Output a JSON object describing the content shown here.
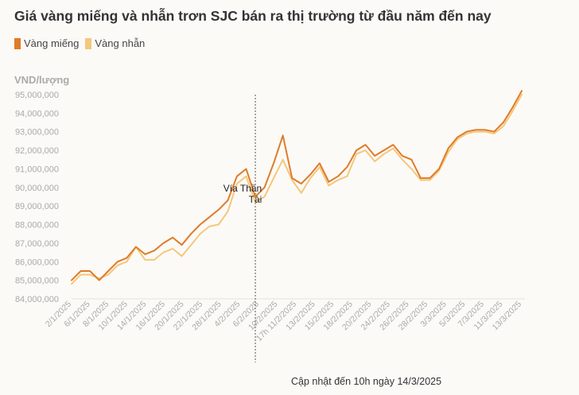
{
  "title": "Giá vàng miếng và nhẫn trơn SJC bán ra thị trường từ đầu năm đến nay",
  "footer": "Cập nhật đến 10h ngày 14/3/2025",
  "colors": {
    "vang_mieng": "#e07b28",
    "vang_nhan": "#f5c77a",
    "axis_text": "#aaaaaa",
    "annotation_line": "#555555"
  },
  "chart_data": {
    "type": "line",
    "ylabel": "VND/lượng",
    "ylim": [
      84000000,
      95000000
    ],
    "yticks": [
      "95,000,000",
      "94,000,000",
      "93,000,000",
      "92,000,000",
      "91,000,000",
      "90,000,000",
      "89,000,000",
      "88,000,000",
      "87,000,000",
      "86,000,000",
      "85,000,000",
      "84,000,000"
    ],
    "yticks_values": [
      95000000,
      94000000,
      93000000,
      92000000,
      91000000,
      90000000,
      89000000,
      88000000,
      87000000,
      86000000,
      85000000,
      84000000
    ],
    "xtick_labels": [
      "2/1/2025",
      "6/1/2025",
      "8/1/2025",
      "10/1/2025",
      "14/1/2025",
      "16/1/2025",
      "20/1/2025",
      "22/1/2025",
      "28/1/2025",
      "4/2/2025",
      "6/2/2025",
      "10/2/2025",
      "17h 11/2/2025",
      "13/2/2025",
      "15/2/2025",
      "18/2/2025",
      "20/2/2025",
      "24/2/2025",
      "26/2/2025",
      "28/2/2025",
      "3/3/2025",
      "5/3/2025",
      "7/3/2025",
      "11/3/2025",
      "13/3/2025"
    ],
    "grid": false,
    "legend": "top-left",
    "annotation": {
      "text": "Vía Thần Tài",
      "line_at_index": 20
    },
    "series": [
      {
        "name": "Vàng miếng",
        "values": [
          85000000,
          85500000,
          85500000,
          85000000,
          85500000,
          86000000,
          86200000,
          86800000,
          86400000,
          86600000,
          87000000,
          87300000,
          86900000,
          87500000,
          88000000,
          88400000,
          88800000,
          89300000,
          90600000,
          91000000,
          89500000,
          90000000,
          91300000,
          92800000,
          90500000,
          90200000,
          90700000,
          91300000,
          90300000,
          90600000,
          91100000,
          92000000,
          92300000,
          91700000,
          92000000,
          92300000,
          91700000,
          91500000,
          90500000,
          90500000,
          91000000,
          92100000,
          92700000,
          93000000,
          93100000,
          93100000,
          93000000,
          93500000,
          94300000,
          95200000
        ]
      },
      {
        "name": "Vàng nhẫn",
        "values": [
          84800000,
          85300000,
          85300000,
          85100000,
          85300000,
          85800000,
          86000000,
          86800000,
          86100000,
          86100000,
          86500000,
          86700000,
          86300000,
          86900000,
          87500000,
          87900000,
          88000000,
          88700000,
          90200000,
          90600000,
          89200000,
          89500000,
          90500000,
          91500000,
          90400000,
          89700000,
          90500000,
          91100000,
          90100000,
          90400000,
          90600000,
          91800000,
          92000000,
          91400000,
          91800000,
          92100000,
          91500000,
          91000000,
          90400000,
          90400000,
          90900000,
          91900000,
          92600000,
          92900000,
          93000000,
          93000000,
          92900000,
          93300000,
          94100000,
          95000000
        ]
      }
    ]
  }
}
